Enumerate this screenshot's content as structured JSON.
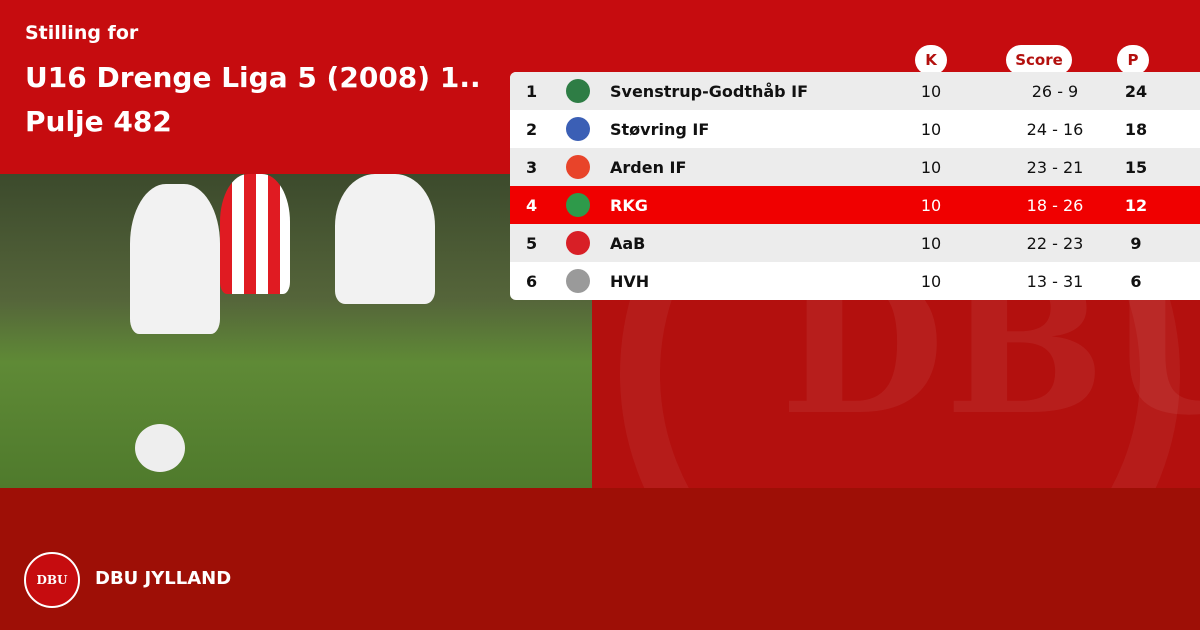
{
  "header": {
    "subtitle": "Stilling for",
    "title": "U16 Drenge Liga 5 (2008) 1.. Pulje 482"
  },
  "columns": {
    "k": "K",
    "score": "Score",
    "p": "P"
  },
  "rows": [
    {
      "pos": "1",
      "team": "Svenstrup-Godthåb IF",
      "k": "10",
      "score": "26 - 9",
      "p": "24",
      "logo_color": "#2e7d45"
    },
    {
      "pos": "2",
      "team": "Støvring IF",
      "k": "10",
      "score": "24 - 16",
      "p": "18",
      "logo_color": "#3b5fb5"
    },
    {
      "pos": "3",
      "team": "Arden IF",
      "k": "10",
      "score": "23 - 21",
      "p": "15",
      "logo_color": "#e8442a"
    },
    {
      "pos": "4",
      "team": "RKG",
      "k": "10",
      "score": "18 - 26",
      "p": "12",
      "logo_color": "#2e9a4a",
      "highlighted": true
    },
    {
      "pos": "5",
      "team": "AaB",
      "k": "10",
      "score": "22 - 23",
      "p": "9",
      "logo_color": "#d81f26"
    },
    {
      "pos": "6",
      "team": "HVH",
      "k": "10",
      "score": "13 - 31",
      "p": "6",
      "logo_color": "#9a9a9a"
    }
  ],
  "footer": {
    "brand": "DBU JYLLAND",
    "seal_text": "DBU"
  },
  "colors": {
    "top": "#c60c0f",
    "bottom": "#9e0f06",
    "highlight": "#f00000"
  }
}
